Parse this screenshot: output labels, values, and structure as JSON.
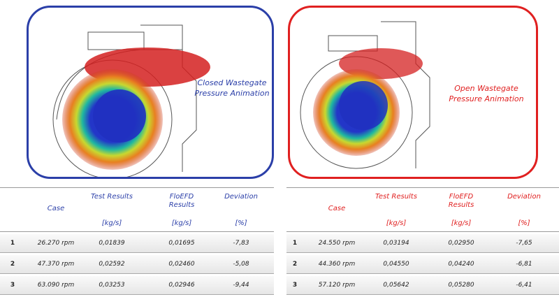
{
  "panels": [
    {
      "caption": "Closed Wastegate Pressure Animation"
    },
    {
      "caption": "Open Wastegate Pressure Animation"
    }
  ],
  "tables": [
    {
      "headers": [
        {
          "title": "Case"
        },
        {
          "title": "Test Results",
          "unit": "[kg/s]"
        },
        {
          "title": "FloEFD Results",
          "unit": "[kg/s]"
        },
        {
          "title": "Deviation",
          "unit": "[%]"
        }
      ],
      "rows": [
        [
          "1",
          "26.270 rpm",
          "0,01839",
          "0,01695",
          "-7,83"
        ],
        [
          "2",
          "47.370 rpm",
          "0,02592",
          "0,02460",
          "-5,08"
        ],
        [
          "3",
          "63.090 rpm",
          "0,03253",
          "0,02946",
          "-9,44"
        ]
      ]
    },
    {
      "headers": [
        {
          "title": "Case"
        },
        {
          "title": "Test Results",
          "unit": "[kg/s]"
        },
        {
          "title": "FloEFD Results",
          "unit": "[kg/s]"
        },
        {
          "title": "Deviation",
          "unit": "[%]"
        }
      ],
      "rows": [
        [
          "1",
          "24.550 rpm",
          "0,03194",
          "0,02950",
          "-7,65"
        ],
        [
          "2",
          "44.360 rpm",
          "0,04550",
          "0,04240",
          "-6,81"
        ],
        [
          "3",
          "57.120 rpm",
          "0,05642",
          "0,05280",
          "-6,41"
        ]
      ]
    }
  ]
}
